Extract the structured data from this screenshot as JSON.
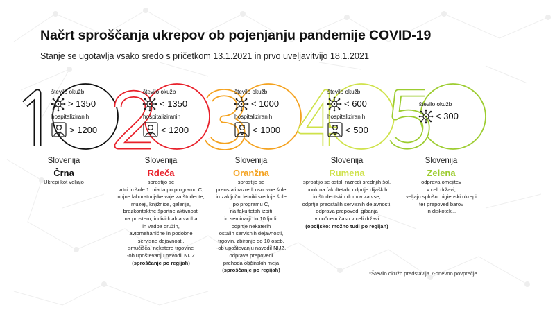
{
  "title": "Načrt sproščanja ukrepov ob pojenjanju pandemije COVID-19",
  "subtitle": "Stanje se ugotavlja vsako sredo s pričetkom 13.1.2021 in prvo uveljavitvijo 18.1.2021",
  "colors": {
    "crna": "#111111",
    "rdeca": "#e8202a",
    "oranzna": "#f4a21f",
    "rumena": "#cfe24a",
    "zelena": "#9ccc2f"
  },
  "icons": [
    "virus-icon",
    "doctor-icon"
  ],
  "stages": [
    {
      "number": "1",
      "infections_label": "število okužb",
      "infections_value": "> 1350",
      "hospital_label": "hospitaliziranih",
      "hospital_value": "> 1200",
      "region": "Slovenija",
      "level": "Črna",
      "desc_lines": [
        "Ukrepi kot veljajo"
      ],
      "desc_bold": ""
    },
    {
      "number": "2",
      "infections_label": "število okužb",
      "infections_value": "< 1350",
      "hospital_label": "hospitaliziranih",
      "hospital_value": "< 1200",
      "region": "Slovenija",
      "level": "Rdeča",
      "desc_lines": [
        "sprostijo se",
        "vrtci in šole 1. triada po programu C,",
        "nujne laboratorijske vaje za študente,",
        "muzeji, knjižnice, galerije,",
        "brezkontaktne športne aktivnosti",
        "na prostem, individualna vadba",
        "in vadba družin,",
        "avtomehanične in podobne",
        "servisne dejavnosti,",
        "smučišča, nekatere trgovine",
        "-ob upoštevanju navodil NIJZ"
      ],
      "desc_bold": "(sproščanje po regijah)"
    },
    {
      "number": "3",
      "infections_label": "število okužb",
      "infections_value": "< 1000",
      "hospital_label": "hospitaliziranih",
      "hospital_value": "< 1000",
      "region": "Slovenija",
      "level": "Oranžna",
      "desc_lines": [
        "sprostijo se",
        "preostali razredi osnovne šole",
        "in zaključni letniki srednje šole",
        "po programu C,",
        "na fakultetah izpiti",
        "in seminarji do 10 ljudi,",
        "odprtje nekaterih",
        "ostalih servisnih dejavnosti,",
        "trgovin, zbiranje do 10 oseb,",
        "-ob upoštevanju navodil NIJZ,",
        "odprava prepovedi",
        "prehoda občinskih meja"
      ],
      "desc_bold": "(sproščanje po regijah)"
    },
    {
      "number": "4",
      "infections_label": "število okužb",
      "infections_value": "< 600",
      "hospital_label": "hospitaliziranih",
      "hospital_value": "< 500",
      "region": "Slovenija",
      "level": "Rumena",
      "desc_lines": [
        "sprostijo se ostali razredi srednjih šol,",
        "pouk na fakultetah, odprtje dijaških",
        "in študentskih domov za vse,",
        "odprtje preostalih servisnih dejavnosti,",
        "odprava prepovedi gibanja",
        "v nočnem času v celi državi"
      ],
      "desc_bold": "(opcijsko: možno tudi po regijah)"
    },
    {
      "number": "5",
      "infections_label": "število okužb",
      "infections_value": "< 300",
      "hospital_label": "",
      "hospital_value": "",
      "region": "Slovenija",
      "level": "Zelena",
      "desc_lines": [
        "odprava omejitev",
        "v celi državi,",
        "veljajo splošni higienski ukrepi",
        "ter prepoved barov",
        "in diskotek..."
      ],
      "desc_bold": ""
    }
  ],
  "footnote": "*Število okužb predstavlja 7-dnevno povprečje"
}
